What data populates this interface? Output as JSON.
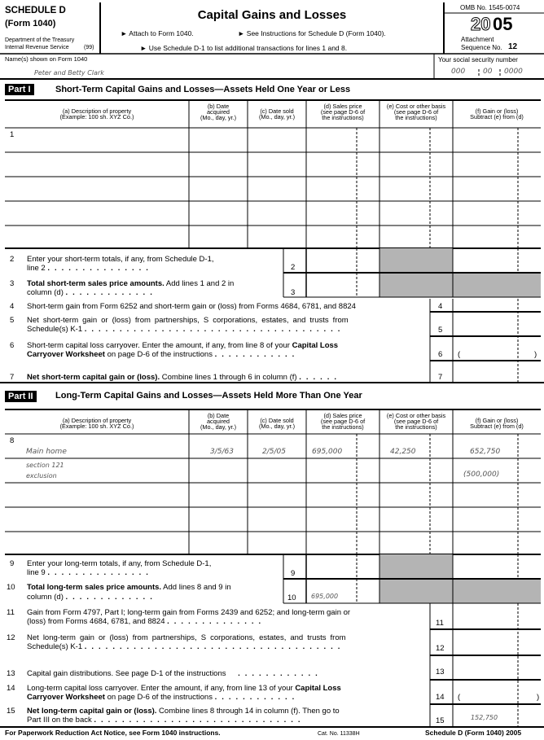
{
  "header": {
    "schedule": "SCHEDULE D",
    "form": "(Form 1040)",
    "dept": "Department of the Treasury",
    "irs": "Internal Revenue Service",
    "code": "(99)",
    "title": "Capital Gains and Losses",
    "attach": "► Attach to Form 1040.",
    "see": "► See Instructions for Schedule D (Form 1040).",
    "use": "► Use Schedule D-1 to list additional transactions for lines 1 and 8.",
    "omb": "OMB No. 1545-0074",
    "year_outline": "20",
    "year_bold": "05",
    "attachment": "Attachment",
    "sequence": "Sequence No.",
    "sequence_no": "12"
  },
  "names": {
    "label": "Name(s) shown on Form 1040",
    "value": "Peter and Betty Clark",
    "ssn_label": "Your social security number",
    "ssn": [
      "000",
      "00",
      "0000"
    ]
  },
  "columns": {
    "a1": "(a) Description of property",
    "a2": "(Example: 100 sh. XYZ Co.)",
    "b1": "(b) Date",
    "b2": "acquired",
    "b3": "(Mo., day, yr.)",
    "c1": "(c) Date sold",
    "c2": "(Mo., day, yr.)",
    "d1": "(d) Sales price",
    "d2": "(see page D-6 of",
    "d3": "the instructions)",
    "e1": "(e) Cost or other basis",
    "e2": "(see page D-6 of",
    "e3": "the instructions)",
    "f1": "(f) Gain or (loss)",
    "f2": "Subtract (e) from (d)"
  },
  "part1": {
    "label": "Part I",
    "title": "Short-Term Capital Gains and Losses—Assets Held One Year or Less",
    "lines": {
      "l1": "1",
      "l2": {
        "n": "2",
        "t1": "Enter your short-term totals, if any, from Schedule D-1,",
        "t2": "line 2"
      },
      "l3": {
        "n": "3",
        "b": "Total short-term sales price amounts.",
        "t1": " Add lines 1 and 2 in",
        "t2": "column (d)"
      },
      "l4": {
        "n": "4",
        "t1": "Short-term gain from Form 6252 and short-term gain or (loss) from Forms 4684, 6781, and 8824"
      },
      "l5": {
        "n": "5",
        "t1": "Net short-term gain or (loss) from partnerships, S corporations, estates, and trusts from",
        "t2": "Schedule(s) K-1"
      },
      "l6": {
        "n": "6",
        "t1": "Short-term capital loss carryover. Enter the amount, if any, from line 8 of your ",
        "b1": "Capital Loss",
        "b2": "Carryover Worksheet",
        "t2": " on page D-6 of the instructions",
        "open": "(",
        "close": ")"
      },
      "l7": {
        "n": "7",
        "b": "Net short-term capital gain or (loss).",
        "t1": " Combine lines 1 through 6 in column (f)"
      }
    }
  },
  "part2": {
    "label": "Part II",
    "title": "Long-Term Capital Gains and Losses—Assets Held More Than One Year",
    "lines": {
      "l8": "8",
      "rows": [
        {
          "a": "Main home",
          "b": "3/5/63",
          "c": "2/5/05",
          "d": "695,000",
          "e": "42,250",
          "f": "652,750"
        },
        {
          "a1": "section 121",
          "a2": "exclusion",
          "f": "(500,000)"
        }
      ],
      "l9": {
        "n": "9",
        "t1": "Enter your long-term totals, if any, from Schedule D-1,",
        "t2": "line 9"
      },
      "l10": {
        "n": "10",
        "b": "Total long-term sales price amounts.",
        "t1": " Add lines 8 and 9 in",
        "t2": "column (d)",
        "value": "695,000"
      },
      "l11": {
        "n": "11",
        "t1": "Gain from Form 4797, Part I; long-term gain from Forms 2439 and 6252; and long-term gain or",
        "t2": "(loss) from Forms 4684, 6781, and 8824"
      },
      "l12": {
        "n": "12",
        "t1": "Net long-term gain or (loss) from partnerships, S corporations, estates, and trusts from",
        "t2": "Schedule(s) K-1"
      },
      "l13": {
        "n": "13",
        "t1": "Capital gain distributions. See page D-1 of the instructions"
      },
      "l14": {
        "n": "14",
        "t1": "Long-term capital loss carryover. Enter the amount, if any, from line 13 of your ",
        "b1": "Capital Loss",
        "b2": "Carryover Worksheet",
        "t2": " on page D-6 of the instructions",
        "open": "(",
        "close": ")"
      },
      "l15": {
        "n": "15",
        "b": "Net long-term capital gain or (loss).",
        "t1": " Combine lines 8 through 14 in column (f). Then go to",
        "t2": "Part III on the back",
        "value": "152,750"
      }
    }
  },
  "footer": {
    "notice": "For Paperwork Reduction Act Notice, see Form 1040 instructions.",
    "cat": "Cat. No. 11338H",
    "form": "Schedule D (Form 1040) 2005"
  },
  "colors": {
    "shade": "#b4b4b4",
    "ink": "#000000",
    "handwriting": "#555555"
  }
}
